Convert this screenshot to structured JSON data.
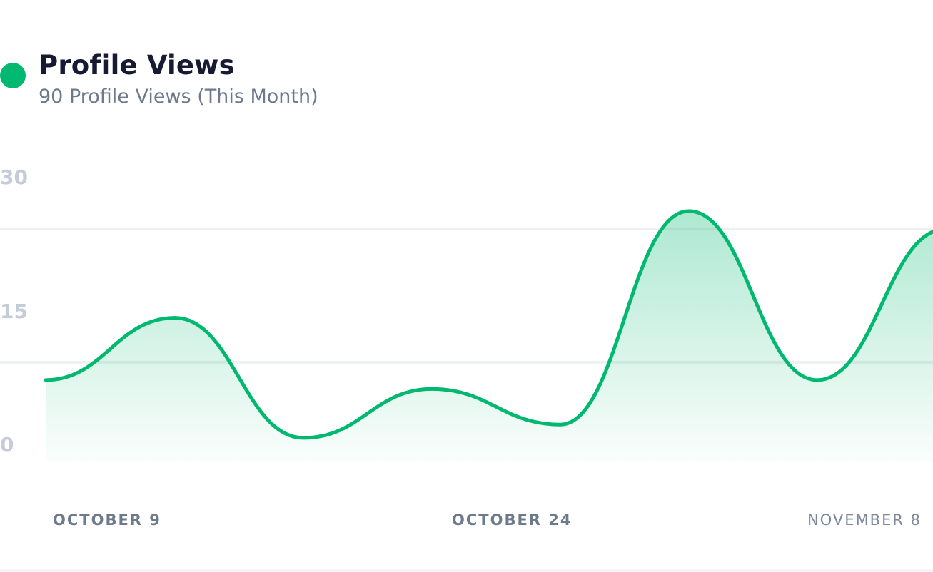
{
  "header": {
    "title": "Profile Views",
    "subtitle": "90 Profile Views (This Month)"
  },
  "colors": {
    "series": "#00b86f",
    "grid": "#eef0f3",
    "y_tick": "#c5cbd8",
    "x_tick_bold": "#6c7a8c",
    "x_tick_light": "#7d8796"
  },
  "chart_data": {
    "type": "area",
    "title": "Profile Views",
    "subtitle": "90 Profile Views (This Month)",
    "ylim": [
      0,
      30
    ],
    "y_ticks": [
      {
        "value": 30,
        "label": "30"
      },
      {
        "value": 15,
        "label": "15"
      },
      {
        "value": 0,
        "label": "0"
      }
    ],
    "grid_lines": [
      28,
      13
    ],
    "x_labels": [
      "OCTOBER 9",
      "OCTOBER 24",
      "NOVEMBER 8"
    ],
    "series": [
      {
        "name": "Profile Views",
        "values": [
          11,
          18,
          4.5,
          10,
          6,
          30,
          11,
          28
        ]
      }
    ]
  }
}
